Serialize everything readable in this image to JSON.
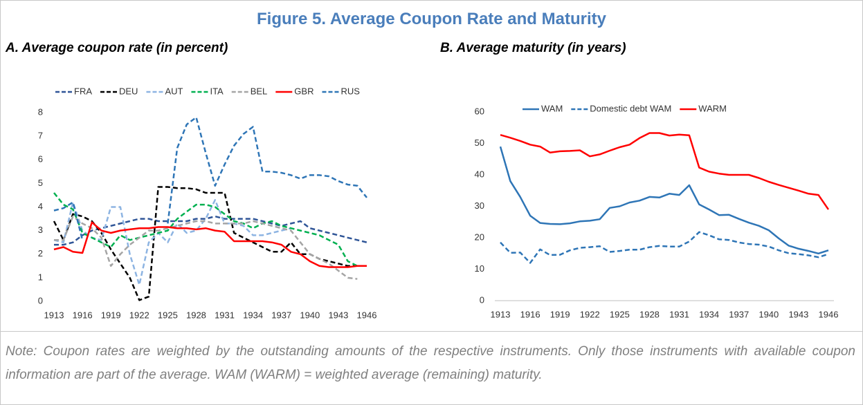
{
  "title": "Figure 5. Average Coupon Rate and Maturity",
  "chart_data": [
    {
      "type": "line",
      "title": "A. Average coupon rate (in percent)",
      "x": [
        1913,
        1914,
        1915,
        1916,
        1917,
        1918,
        1919,
        1920,
        1921,
        1922,
        1923,
        1924,
        1925,
        1926,
        1927,
        1928,
        1929,
        1930,
        1931,
        1932,
        1933,
        1934,
        1935,
        1936,
        1937,
        1938,
        1939,
        1940,
        1941,
        1942,
        1943,
        1944,
        1945,
        1946
      ],
      "xlim": [
        1913,
        1946
      ],
      "xticks": [
        1913,
        1916,
        1919,
        1922,
        1925,
        1928,
        1931,
        1934,
        1937,
        1940,
        1943,
        1946
      ],
      "ylim": [
        0,
        8
      ],
      "yticks": [
        0,
        1,
        2,
        3,
        4,
        5,
        6,
        7,
        8
      ],
      "grid": false,
      "legend": "top",
      "series": [
        {
          "name": "FRA",
          "color": "#2f5597",
          "style": "dashed",
          "values": [
            2.4,
            2.4,
            2.5,
            2.8,
            3.0,
            3.1,
            3.2,
            3.3,
            3.4,
            3.5,
            3.5,
            3.4,
            3.4,
            3.4,
            3.4,
            3.5,
            3.5,
            3.6,
            3.5,
            3.5,
            3.5,
            3.5,
            3.4,
            3.3,
            3.2,
            3.3,
            3.4,
            3.1,
            3.0,
            2.9,
            2.8,
            2.7,
            2.6,
            2.5
          ]
        },
        {
          "name": "DEU",
          "color": "#000000",
          "style": "dashed",
          "values": [
            3.4,
            2.6,
            3.7,
            3.6,
            3.4,
            2.9,
            2.2,
            1.6,
            1.0,
            0.05,
            0.2,
            4.85,
            4.85,
            4.8,
            4.8,
            4.75,
            4.6,
            4.6,
            4.6,
            2.9,
            2.7,
            2.5,
            2.3,
            2.1,
            2.1,
            2.5,
            2.0,
            2.0,
            1.8,
            1.7,
            1.6,
            1.5,
            1.5,
            null
          ]
        },
        {
          "name": "AUT",
          "color": "#8db4e2",
          "style": "dashed",
          "values": [
            2.6,
            2.5,
            4.2,
            3.0,
            2.7,
            2.6,
            4.0,
            4.0,
            2.0,
            0.7,
            2.5,
            2.9,
            2.5,
            3.3,
            2.9,
            3.0,
            3.5,
            4.3,
            3.3,
            3.3,
            3.2,
            2.8,
            2.8,
            2.9,
            3.0,
            3.1,
            null,
            null,
            null,
            null,
            null,
            null,
            null,
            null
          ]
        },
        {
          "name": "ITA",
          "color": "#00b050",
          "style": "dashed",
          "values": [
            4.6,
            4.1,
            3.9,
            2.9,
            2.7,
            2.5,
            2.3,
            2.8,
            2.6,
            2.7,
            2.8,
            2.9,
            3.0,
            3.5,
            3.8,
            4.1,
            4.1,
            4.0,
            3.7,
            3.4,
            3.3,
            3.1,
            3.3,
            3.4,
            3.2,
            3.1,
            3.0,
            2.9,
            2.8,
            2.6,
            2.4,
            1.7,
            1.5,
            1.5
          ]
        },
        {
          "name": "BEL",
          "color": "#a5a5a5",
          "style": "dashed",
          "values": [
            2.6,
            2.6,
            3.6,
            3.3,
            3.1,
            2.7,
            1.5,
            2.0,
            2.4,
            2.7,
            3.0,
            3.0,
            3.1,
            3.2,
            3.3,
            3.4,
            3.4,
            3.3,
            3.3,
            3.3,
            3.3,
            3.4,
            3.3,
            3.2,
            3.1,
            3.0,
            2.5,
            2.0,
            1.8,
            1.6,
            1.3,
            1.0,
            0.95,
            null
          ]
        },
        {
          "name": "GBR",
          "color": "#ff0000",
          "style": "solid",
          "values": [
            2.2,
            2.3,
            2.1,
            2.05,
            3.35,
            3.0,
            2.9,
            3.0,
            3.05,
            3.1,
            3.1,
            3.15,
            3.15,
            3.1,
            3.1,
            3.05,
            3.1,
            3.0,
            2.95,
            2.55,
            2.55,
            2.55,
            2.55,
            2.5,
            2.4,
            2.1,
            2.0,
            1.7,
            1.5,
            1.45,
            1.45,
            1.45,
            1.5,
            1.5
          ]
        },
        {
          "name": "RUS",
          "color": "#2e75b6",
          "style": "dashed",
          "values": [
            3.85,
            3.95,
            4.2,
            2.6,
            null,
            null,
            null,
            null,
            null,
            null,
            null,
            null,
            3.3,
            6.5,
            7.5,
            7.8,
            6.3,
            4.9,
            5.8,
            6.6,
            7.1,
            7.4,
            5.5,
            5.5,
            5.45,
            5.35,
            5.2,
            5.35,
            5.35,
            5.3,
            5.1,
            4.95,
            4.9,
            4.4
          ]
        }
      ]
    },
    {
      "type": "line",
      "title": "B. Average maturity (in years)",
      "x": [
        1913,
        1914,
        1915,
        1916,
        1917,
        1918,
        1919,
        1920,
        1921,
        1922,
        1923,
        1924,
        1925,
        1926,
        1927,
        1928,
        1929,
        1930,
        1931,
        1932,
        1933,
        1934,
        1935,
        1936,
        1937,
        1938,
        1939,
        1940,
        1941,
        1942,
        1943,
        1944,
        1945,
        1946
      ],
      "xlim": [
        1913,
        1946
      ],
      "xticks": [
        1913,
        1916,
        1919,
        1922,
        1925,
        1928,
        1931,
        1934,
        1937,
        1940,
        1943,
        1946
      ],
      "ylim": [
        0,
        60
      ],
      "yticks": [
        0,
        10,
        20,
        30,
        40,
        50,
        60
      ],
      "grid": false,
      "legend": "top",
      "series": [
        {
          "name": "WAM",
          "color": "#2e75b6",
          "style": "solid",
          "values": [
            49,
            38,
            33,
            27,
            24.7,
            24.4,
            24.3,
            24.6,
            25.2,
            25.4,
            25.9,
            29.5,
            30,
            31.2,
            31.8,
            33,
            32.8,
            34,
            33.6,
            36.7,
            30.6,
            29,
            27.2,
            27.3,
            26,
            24.8,
            23.8,
            22.4,
            19.8,
            17.5,
            16.5,
            15.8,
            15,
            16
          ]
        },
        {
          "name": "Domestic debt WAM",
          "color": "#2e75b6",
          "style": "dashed",
          "values": [
            18.5,
            15.2,
            15.3,
            12,
            16.3,
            14.5,
            14.6,
            16,
            16.8,
            17,
            17.3,
            15.5,
            15.8,
            16.2,
            16.2,
            17,
            17.4,
            17.2,
            17.2,
            18.8,
            21.8,
            20.8,
            19.5,
            19.3,
            18.5,
            18,
            17.8,
            17.2,
            16,
            15.1,
            14.8,
            14.4,
            13.8,
            14.8
          ]
        },
        {
          "name": "WARM",
          "color": "#ff0000",
          "style": "solid",
          "values": [
            52.7,
            51.8,
            50.8,
            49.6,
            49,
            47.1,
            47.5,
            47.6,
            47.8,
            45.9,
            46.5,
            47.7,
            48.8,
            49.6,
            51.7,
            53.3,
            53.3,
            52.5,
            52.8,
            52.6,
            42.3,
            41,
            40.4,
            40,
            40,
            40,
            39,
            37.8,
            36.8,
            35.9,
            35,
            34,
            33.6,
            29
          ]
        }
      ]
    }
  ],
  "note": "Note: Coupon rates are weighted by the outstanding amounts of the respective instruments. Only those instruments with available coupon information are part of the average. WAM (WARM) = weighted average (remaining) maturity."
}
